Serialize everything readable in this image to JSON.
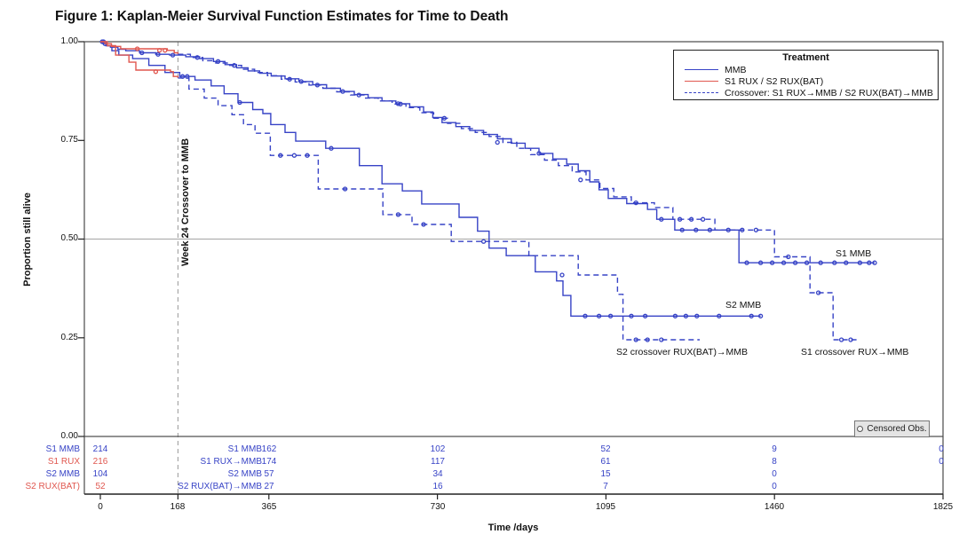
{
  "title": "Figure 1: Kaplan-Meier Survival Function Estimates for Time to Death",
  "axes": {
    "y_title": "Proportion still alive",
    "x_title": "Time /days",
    "y_ticks": [
      "1.00",
      "0.75",
      "0.50",
      "0.25",
      "0.00"
    ],
    "x_ticks": [
      "0",
      "168",
      "365",
      "730",
      "1095",
      "1460",
      "1825"
    ]
  },
  "legend": {
    "title": "Treatment",
    "entries": [
      {
        "label": "MMB",
        "color": "blue",
        "style": "solid"
      },
      {
        "label": "S1 RUX / S2 RUX(BAT)",
        "color": "red",
        "style": "solid"
      },
      {
        "label": "Crossover: S1 RUX→MMB / S2 RUX(BAT)→MMB",
        "color": "blue",
        "style": "dashed"
      }
    ]
  },
  "censored_legend": "Censored Obs.",
  "annotations": {
    "week24": "Week 24 Crossover to MMB",
    "s1_mmb": "S1 MMB",
    "s2_mmb": "S2 MMB",
    "s2_xo": "S2 crossover RUX(BAT)→MMB",
    "s1_xo": "S1 crossover RUX→MMB"
  },
  "at_risk": {
    "rows": [
      {
        "label1": "S1 MMB",
        "color": "blue",
        "n0": "214",
        "label2": "S1 MMB",
        "n365": "162",
        "n730": "102",
        "n1095": "52",
        "n1460": "9",
        "n1825": "0"
      },
      {
        "label1": "S1 RUX",
        "color": "red",
        "n0": "216",
        "label2": "S1 RUX→MMB",
        "n365": "174",
        "n730": "117",
        "n1095": "61",
        "n1460": "8",
        "n1825": "0"
      },
      {
        "label1": "S2 MMB",
        "color": "blue",
        "n0": "104",
        "label2": "S2 MMB",
        "n365": "57",
        "n730": "34",
        "n1095": "15",
        "n1460": "0",
        "n1825": ""
      },
      {
        "label1": "S2 RUX(BAT)",
        "color": "red",
        "n0": "52",
        "label2": "S2 RUX(BAT)→MMB",
        "n365": "27",
        "n730": "16",
        "n1095": "7",
        "n1460": "0",
        "n1825": ""
      }
    ]
  },
  "chart_data": {
    "type": "line",
    "subtype": "kaplan-meier-step",
    "title": "Figure 1: Kaplan-Meier Survival Function Estimates for Time to Death",
    "xlabel": "Time /days",
    "ylabel": "Proportion still alive",
    "xlim": [
      0,
      1825
    ],
    "ylim": [
      0,
      1
    ],
    "x_tick_values": [
      0,
      168,
      365,
      730,
      1095,
      1460,
      1825
    ],
    "y_tick_values": [
      1,
      0.75,
      0.5,
      0.25,
      0
    ],
    "reference_line_y": 0.5,
    "reference_line_x_days": 168,
    "grid": false,
    "legend_position": "top-right",
    "palette": {
      "blue": "#3743c6",
      "red": "#e0574f"
    },
    "series": [
      {
        "name": "S1 MMB",
        "color": "blue",
        "dashed": false,
        "points": [
          [
            0,
            1
          ],
          [
            6,
            0.995
          ],
          [
            14,
            0.99
          ],
          [
            22,
            0.986
          ],
          [
            38,
            0.981
          ],
          [
            55,
            0.977
          ],
          [
            85,
            0.972
          ],
          [
            120,
            0.968
          ],
          [
            150,
            0.966
          ],
          [
            185,
            0.962
          ],
          [
            215,
            0.957
          ],
          [
            245,
            0.95
          ],
          [
            270,
            0.942
          ],
          [
            295,
            0.934
          ],
          [
            320,
            0.926
          ],
          [
            345,
            0.92
          ],
          [
            370,
            0.913
          ],
          [
            400,
            0.906
          ],
          [
            430,
            0.899
          ],
          [
            460,
            0.891
          ],
          [
            490,
            0.882
          ],
          [
            520,
            0.874
          ],
          [
            550,
            0.866
          ],
          [
            580,
            0.858
          ],
          [
            610,
            0.85
          ],
          [
            640,
            0.843
          ],
          [
            670,
            0.835
          ],
          [
            700,
            0.822
          ],
          [
            720,
            0.808
          ],
          [
            740,
            0.795
          ],
          [
            770,
            0.785
          ],
          [
            800,
            0.775
          ],
          [
            830,
            0.765
          ],
          [
            860,
            0.754
          ],
          [
            890,
            0.743
          ],
          [
            920,
            0.73
          ],
          [
            950,
            0.717
          ],
          [
            980,
            0.703
          ],
          [
            1010,
            0.69
          ],
          [
            1035,
            0.673
          ],
          [
            1060,
            0.645
          ],
          [
            1080,
            0.625
          ],
          [
            1100,
            0.603
          ],
          [
            1140,
            0.59
          ],
          [
            1185,
            0.575
          ],
          [
            1205,
            0.55
          ],
          [
            1244,
            0.523
          ],
          [
            1383,
            0.44
          ],
          [
            1677,
            0.44
          ]
        ],
        "censors": [
          [
            4,
            1
          ],
          [
            10,
            0.995
          ],
          [
            90,
            0.972
          ],
          [
            125,
            0.968
          ],
          [
            157,
            0.966
          ],
          [
            255,
            0.95
          ],
          [
            435,
            0.899
          ],
          [
            525,
            0.874
          ],
          [
            645,
            0.843
          ],
          [
            1215,
            0.55
          ],
          [
            1260,
            0.523
          ],
          [
            1290,
            0.523
          ],
          [
            1320,
            0.523
          ],
          [
            1400,
            0.44
          ],
          [
            1430,
            0.44
          ],
          [
            1455,
            0.44
          ],
          [
            1480,
            0.44
          ],
          [
            1505,
            0.44
          ],
          [
            1530,
            0.44
          ],
          [
            1560,
            0.44
          ],
          [
            1590,
            0.44
          ],
          [
            1615,
            0.44
          ],
          [
            1645,
            0.44
          ],
          [
            1665,
            0.44
          ],
          [
            1677,
            0.44
          ]
        ]
      },
      {
        "name": "S2 MMB",
        "color": "blue",
        "dashed": false,
        "points": [
          [
            0,
            1
          ],
          [
            12,
            0.99
          ],
          [
            25,
            0.977
          ],
          [
            40,
            0.966
          ],
          [
            70,
            0.957
          ],
          [
            105,
            0.94
          ],
          [
            140,
            0.922
          ],
          [
            172,
            0.912
          ],
          [
            205,
            0.903
          ],
          [
            240,
            0.888
          ],
          [
            268,
            0.868
          ],
          [
            298,
            0.846
          ],
          [
            330,
            0.828
          ],
          [
            352,
            0.818
          ],
          [
            369,
            0.79
          ],
          [
            400,
            0.77
          ],
          [
            423,
            0.748
          ],
          [
            488,
            0.73
          ],
          [
            561,
            0.686
          ],
          [
            610,
            0.64
          ],
          [
            654,
            0.622
          ],
          [
            696,
            0.589
          ],
          [
            777,
            0.555
          ],
          [
            817,
            0.52
          ],
          [
            842,
            0.477
          ],
          [
            879,
            0.458
          ],
          [
            942,
            0.417
          ],
          [
            988,
            0.394
          ],
          [
            1002,
            0.357
          ],
          [
            1019,
            0.305
          ],
          [
            1430,
            0.305
          ]
        ],
        "censors": [
          [
            7,
            1
          ],
          [
            178,
            0.912
          ],
          [
            188,
            0.912
          ],
          [
            302,
            0.846
          ],
          [
            500,
            0.73
          ],
          [
            1050,
            0.305
          ],
          [
            1080,
            0.305
          ],
          [
            1105,
            0.305
          ],
          [
            1150,
            0.305
          ],
          [
            1180,
            0.305
          ],
          [
            1245,
            0.305
          ],
          [
            1268,
            0.305
          ],
          [
            1292,
            0.305
          ],
          [
            1340,
            0.305
          ],
          [
            1410,
            0.305
          ],
          [
            1430,
            0.305
          ]
        ]
      },
      {
        "name": "S1 RUX",
        "color": "red",
        "dashed": false,
        "points": [
          [
            0,
            1
          ],
          [
            10,
            0.995
          ],
          [
            24,
            0.988
          ],
          [
            44,
            0.982
          ],
          [
            145,
            0.978
          ],
          [
            160,
            0.972
          ],
          [
            168,
            0.968
          ]
        ],
        "censors": [
          [
            80,
            0.982
          ],
          [
            128,
            0.978
          ],
          [
            140,
            0.978
          ]
        ]
      },
      {
        "name": "S2 RUX(BAT)",
        "color": "red",
        "dashed": false,
        "points": [
          [
            0,
            1
          ],
          [
            15,
            0.99
          ],
          [
            33,
            0.966
          ],
          [
            62,
            0.948
          ],
          [
            77,
            0.928
          ],
          [
            152,
            0.924
          ],
          [
            158,
            0.912
          ],
          [
            168,
            0.908
          ]
        ],
        "censors": [
          [
            120,
            0.924
          ]
        ]
      },
      {
        "name": "S1 crossover RUX→MMB",
        "color": "blue",
        "dashed": true,
        "points": [
          [
            168,
            0.968
          ],
          [
            195,
            0.96
          ],
          [
            222,
            0.952
          ],
          [
            250,
            0.946
          ],
          [
            278,
            0.94
          ],
          [
            306,
            0.93
          ],
          [
            334,
            0.922
          ],
          [
            362,
            0.914
          ],
          [
            392,
            0.905
          ],
          [
            422,
            0.898
          ],
          [
            452,
            0.89
          ],
          [
            482,
            0.882
          ],
          [
            512,
            0.873
          ],
          [
            542,
            0.865
          ],
          [
            572,
            0.857
          ],
          [
            602,
            0.85
          ],
          [
            632,
            0.842
          ],
          [
            662,
            0.833
          ],
          [
            692,
            0.82
          ],
          [
            722,
            0.806
          ],
          [
            752,
            0.793
          ],
          [
            782,
            0.78
          ],
          [
            812,
            0.77
          ],
          [
            842,
            0.76
          ],
          [
            872,
            0.745
          ],
          [
            902,
            0.73
          ],
          [
            932,
            0.714
          ],
          [
            962,
            0.7
          ],
          [
            992,
            0.686
          ],
          [
            1022,
            0.67
          ],
          [
            1052,
            0.65
          ],
          [
            1082,
            0.628
          ],
          [
            1112,
            0.607
          ],
          [
            1150,
            0.592
          ],
          [
            1200,
            0.58
          ],
          [
            1240,
            0.55
          ],
          [
            1331,
            0.523
          ],
          [
            1460,
            0.455
          ],
          [
            1537,
            0.364
          ],
          [
            1587,
            0.245
          ],
          [
            1640,
            0.245
          ]
        ],
        "censors": [
          [
            210,
            0.96
          ],
          [
            290,
            0.94
          ],
          [
            410,
            0.905
          ],
          [
            470,
            0.89
          ],
          [
            560,
            0.865
          ],
          [
            650,
            0.842
          ],
          [
            745,
            0.806
          ],
          [
            860,
            0.745
          ],
          [
            950,
            0.717
          ],
          [
            1040,
            0.65
          ],
          [
            1160,
            0.592
          ],
          [
            1255,
            0.55
          ],
          [
            1280,
            0.55
          ],
          [
            1305,
            0.55
          ],
          [
            1360,
            0.523
          ],
          [
            1390,
            0.523
          ],
          [
            1420,
            0.523
          ],
          [
            1490,
            0.455
          ],
          [
            1555,
            0.364
          ],
          [
            1605,
            0.245
          ],
          [
            1625,
            0.245
          ]
        ]
      },
      {
        "name": "S2 crossover RUX(BAT)→MMB",
        "color": "blue",
        "dashed": true,
        "points": [
          [
            168,
            0.908
          ],
          [
            192,
            0.88
          ],
          [
            225,
            0.857
          ],
          [
            255,
            0.838
          ],
          [
            285,
            0.815
          ],
          [
            310,
            0.79
          ],
          [
            335,
            0.768
          ],
          [
            368,
            0.712
          ],
          [
            472,
            0.627
          ],
          [
            612,
            0.562
          ],
          [
            675,
            0.537
          ],
          [
            760,
            0.494
          ],
          [
            928,
            0.458
          ],
          [
            1035,
            0.409
          ],
          [
            1120,
            0.36
          ],
          [
            1132,
            0.245
          ],
          [
            1298,
            0.245
          ]
        ],
        "censors": [
          [
            390,
            0.712
          ],
          [
            420,
            0.712
          ],
          [
            448,
            0.712
          ],
          [
            530,
            0.627
          ],
          [
            645,
            0.562
          ],
          [
            700,
            0.537
          ],
          [
            830,
            0.494
          ],
          [
            1000,
            0.409
          ],
          [
            1160,
            0.245
          ],
          [
            1185,
            0.245
          ],
          [
            1215,
            0.245
          ]
        ]
      }
    ],
    "at_risk_table": {
      "time_points": [
        0,
        365,
        730,
        1095,
        1460,
        1825
      ],
      "rows": [
        {
          "group_start": "S1 MMB",
          "group_after_crossover": "S1 MMB",
          "counts": [
            214,
            162,
            102,
            52,
            9,
            0
          ]
        },
        {
          "group_start": "S1 RUX",
          "group_after_crossover": "S1 RUX→MMB",
          "counts": [
            216,
            174,
            117,
            61,
            8,
            0
          ]
        },
        {
          "group_start": "S2 MMB",
          "group_after_crossover": "S2 MMB",
          "counts": [
            104,
            57,
            34,
            15,
            0,
            null
          ]
        },
        {
          "group_start": "S2 RUX(BAT)",
          "group_after_crossover": "S2 RUX(BAT)→MMB",
          "counts": [
            52,
            27,
            16,
            7,
            0,
            null
          ]
        }
      ]
    }
  }
}
